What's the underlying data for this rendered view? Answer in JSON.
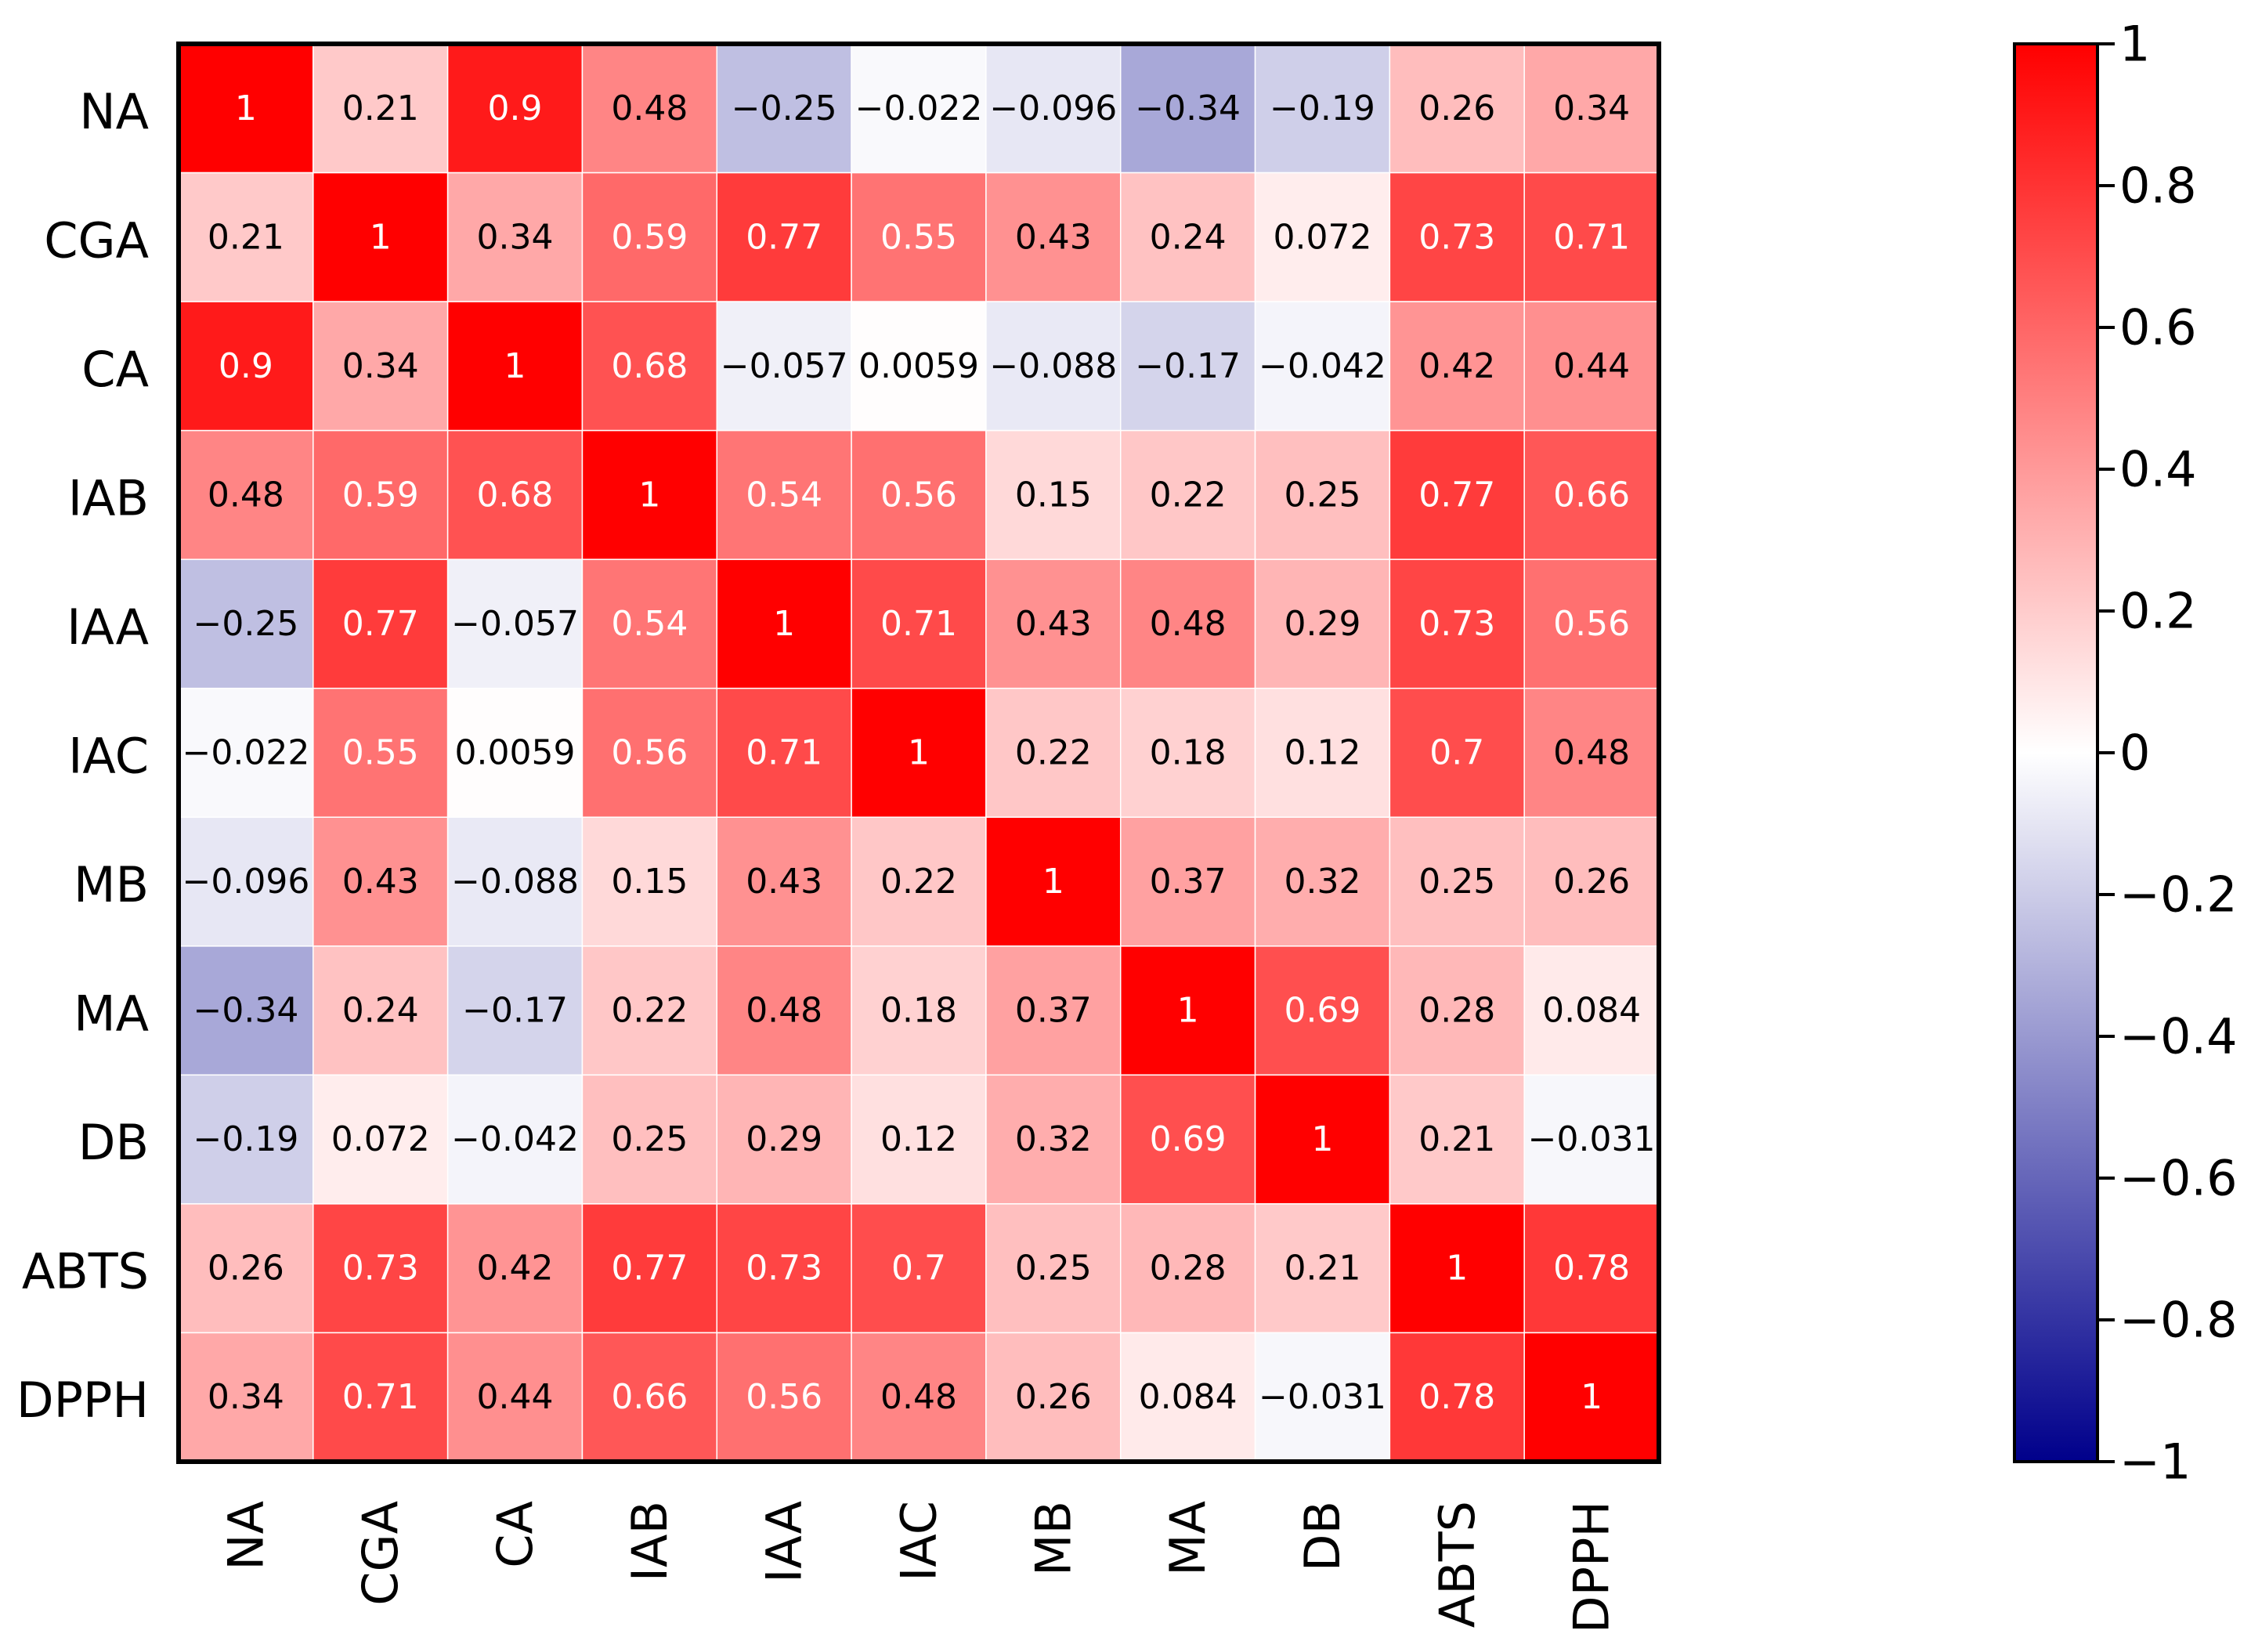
{
  "chart_data": {
    "type": "heatmap",
    "title": "",
    "row_labels": [
      "NA",
      "CGA",
      "CA",
      "IAB",
      "IAA",
      "IAC",
      "MB",
      "MA",
      "DB",
      "ABTS",
      "DPPH"
    ],
    "col_labels": [
      "NA",
      "CGA",
      "CA",
      "IAB",
      "IAA",
      "IAC",
      "MB",
      "MA",
      "DB",
      "ABTS",
      "DPPH"
    ],
    "values": [
      [
        "1",
        "0.21",
        "0.9",
        "0.48",
        "−0.25",
        "−0.022",
        "−0.096",
        "−0.34",
        "−0.19",
        "0.26",
        "0.34"
      ],
      [
        "0.21",
        "1",
        "0.34",
        "0.59",
        "0.77",
        "0.55",
        "0.43",
        "0.24",
        "0.072",
        "0.73",
        "0.71"
      ],
      [
        "0.9",
        "0.34",
        "1",
        "0.68",
        "−0.057",
        "0.0059",
        "−0.088",
        "−0.17",
        "−0.042",
        "0.42",
        "0.44"
      ],
      [
        "0.48",
        "0.59",
        "0.68",
        "1",
        "0.54",
        "0.56",
        "0.15",
        "0.22",
        "0.25",
        "0.77",
        "0.66"
      ],
      [
        "−0.25",
        "0.77",
        "−0.057",
        "0.54",
        "1",
        "0.71",
        "0.43",
        "0.48",
        "0.29",
        "0.73",
        "0.56"
      ],
      [
        "−0.022",
        "0.55",
        "0.0059",
        "0.56",
        "0.71",
        "1",
        "0.22",
        "0.18",
        "0.12",
        "0.7",
        "0.48"
      ],
      [
        "−0.096",
        "0.43",
        "−0.088",
        "0.15",
        "0.43",
        "0.22",
        "1",
        "0.37",
        "0.32",
        "0.25",
        "0.26"
      ],
      [
        "−0.34",
        "0.24",
        "−0.17",
        "0.22",
        "0.48",
        "0.18",
        "0.37",
        "1",
        "0.69",
        "0.28",
        "0.084"
      ],
      [
        "−0.19",
        "0.072",
        "−0.042",
        "0.25",
        "0.29",
        "0.12",
        "0.32",
        "0.69",
        "1",
        "0.21",
        "−0.031"
      ],
      [
        "0.26",
        "0.73",
        "0.42",
        "0.77",
        "0.73",
        "0.7",
        "0.25",
        "0.28",
        "0.21",
        "1",
        "0.78"
      ],
      [
        "0.34",
        "0.71",
        "0.44",
        "0.66",
        "0.56",
        "0.48",
        "0.26",
        "0.084",
        "−0.031",
        "0.78",
        "1"
      ]
    ],
    "colorbar": {
      "range": [
        -1,
        1
      ],
      "ticks": [
        "1",
        "0.8",
        "0.6",
        "0.4",
        "0.2",
        "0",
        "−0.2",
        "−0.4",
        "−0.6",
        "−0.8",
        "−1"
      ],
      "colors": {
        "low": "#00008b",
        "mid": "#ffffff",
        "high": "#ff0000"
      }
    }
  }
}
